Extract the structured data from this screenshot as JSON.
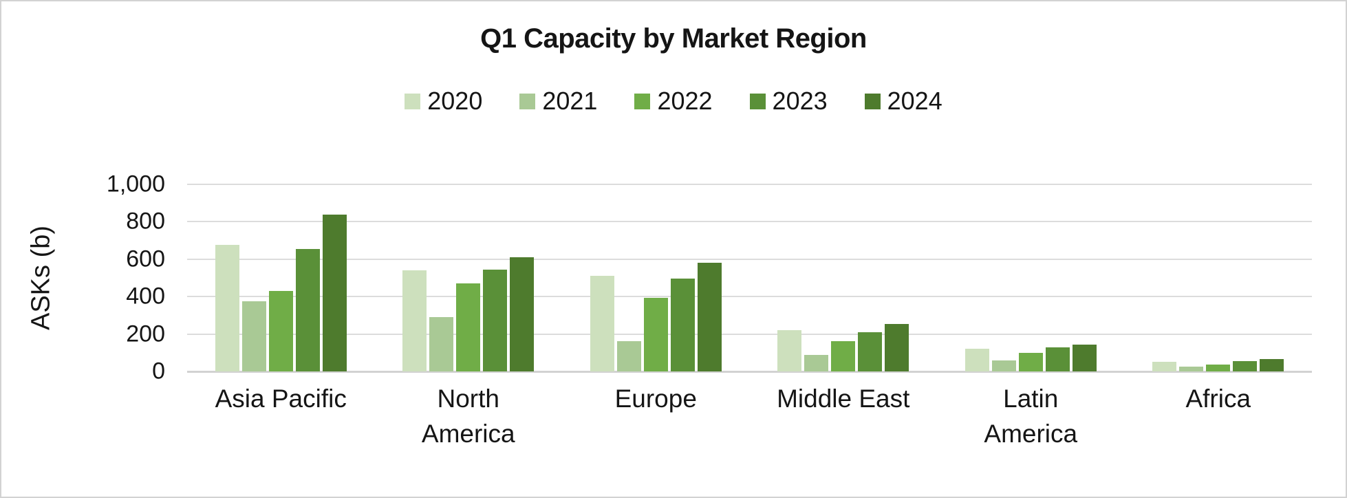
{
  "chart_data": {
    "type": "bar",
    "title": "Q1 Capacity by Market Region",
    "ylabel": "ASKs (b)",
    "xlabel": "",
    "ylim": [
      0,
      1000
    ],
    "ytick_interval": 200,
    "yticks": [
      "1,000",
      "800",
      "600",
      "400",
      "200",
      "0"
    ],
    "grid": "horizontal",
    "gridline_color": "#dcdcdc",
    "axis_line_color": "#d2d2d2",
    "legend_position": "top-center",
    "categories": [
      "Asia Pacific",
      "North America",
      "Europe",
      "Middle East",
      "Latin America",
      "Africa"
    ],
    "category_lines": [
      [
        "Asia Pacific"
      ],
      [
        "North",
        "America"
      ],
      [
        "Europe"
      ],
      [
        "Middle East"
      ],
      [
        "Latin",
        "America"
      ],
      [
        "Africa"
      ]
    ],
    "series": [
      {
        "name": "2020",
        "color": "#cde0bd",
        "values": [
          675,
          540,
          510,
          220,
          120,
          50
        ]
      },
      {
        "name": "2021",
        "color": "#a9c995",
        "values": [
          375,
          290,
          160,
          90,
          60,
          25
        ]
      },
      {
        "name": "2022",
        "color": "#70ad47",
        "values": [
          430,
          470,
          395,
          160,
          100,
          35
        ]
      },
      {
        "name": "2023",
        "color": "#5a9038",
        "values": [
          655,
          545,
          495,
          210,
          130,
          55
        ]
      },
      {
        "name": "2024",
        "color": "#4e7b2d",
        "values": [
          840,
          610,
          580,
          255,
          145,
          65
        ]
      }
    ]
  }
}
